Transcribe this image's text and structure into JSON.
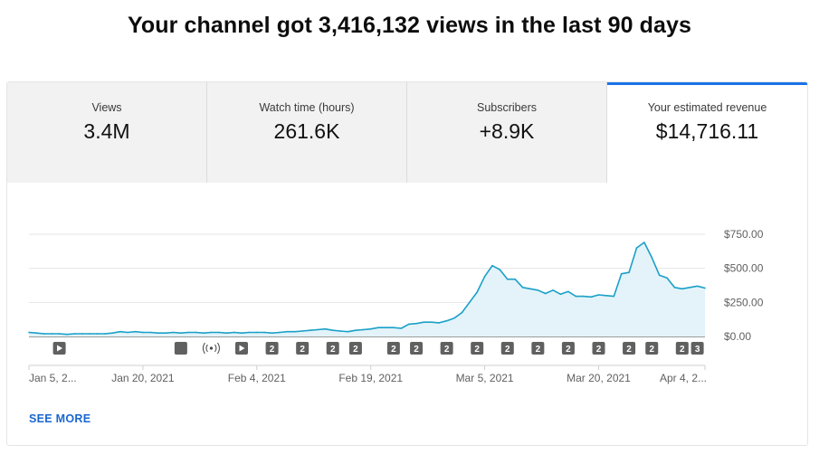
{
  "headline": "Your channel got 3,416,132 views in the last 90 days",
  "tabs": [
    {
      "label": "Views",
      "value": "3.4M",
      "active": false
    },
    {
      "label": "Watch time (hours)",
      "value": "261.6K",
      "active": false
    },
    {
      "label": "Subscribers",
      "value": "+8.9K",
      "active": false
    },
    {
      "label": "Your estimated revenue",
      "value": "$14,716.11",
      "active": true
    }
  ],
  "see_more": "SEE MORE",
  "colors": {
    "accent": "#1a73e8",
    "line": "#1aa0c8",
    "area": "#e3f3f9",
    "link": "#1967d2"
  },
  "chart_data": {
    "type": "area",
    "ylim": [
      0,
      750
    ],
    "y_ticks": [
      "$750.00",
      "$500.00",
      "$250.00",
      "$0.00"
    ],
    "y_tick_values": [
      750,
      500,
      250,
      0
    ],
    "x_tick_labels": [
      "Jan 5, 2...",
      "Jan 20, 2021",
      "Feb 4, 2021",
      "Feb 19, 2021",
      "Mar 5, 2021",
      "Mar 20, 2021",
      "Apr 4, 2..."
    ],
    "x_tick_days": [
      0,
      15,
      30,
      45,
      60,
      75,
      89
    ],
    "grid": true,
    "series": [
      {
        "values": [
          30,
          25,
          20,
          20,
          20,
          15,
          20,
          20,
          20,
          20,
          20,
          25,
          35,
          30,
          35,
          30,
          30,
          25,
          25,
          30,
          25,
          30,
          30,
          25,
          30,
          30,
          25,
          30,
          25,
          30,
          30,
          30,
          25,
          30,
          35,
          35,
          40,
          45,
          50,
          55,
          45,
          40,
          35,
          45,
          50,
          55,
          65,
          65,
          65,
          60,
          90,
          95,
          105,
          105,
          100,
          115,
          135,
          175,
          250,
          325,
          440,
          520,
          490,
          420,
          420,
          360,
          350,
          340,
          315,
          340,
          310,
          330,
          295,
          295,
          290,
          305,
          300,
          295,
          460,
          470,
          650,
          690,
          580,
          450,
          430,
          360,
          350,
          360,
          370,
          355
        ]
      }
    ],
    "annotations": [
      "play",
      "",
      "live",
      "play",
      "2",
      "2",
      "2",
      "2",
      "2",
      "2",
      "2",
      "2",
      "2",
      "2",
      "2",
      "2",
      "2",
      "2",
      "2",
      "3"
    ],
    "annotation_days": [
      4,
      20,
      24,
      28,
      32,
      36,
      40,
      43,
      48,
      51,
      55,
      59,
      63,
      67,
      71,
      75,
      79,
      82,
      86,
      88
    ]
  }
}
